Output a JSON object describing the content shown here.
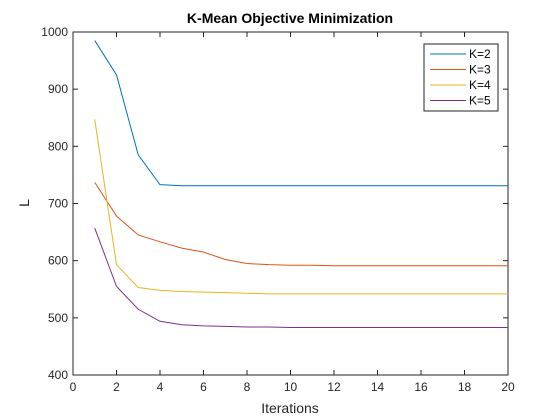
{
  "chart_data": {
    "type": "line",
    "title": "K-Mean Objective Minimization",
    "xlabel": "Iterations",
    "ylabel": "L",
    "xlim": [
      0,
      20
    ],
    "ylim": [
      400,
      1000
    ],
    "xticks": [
      0,
      2,
      4,
      6,
      8,
      10,
      12,
      14,
      16,
      18,
      20
    ],
    "yticks": [
      400,
      500,
      600,
      700,
      800,
      900,
      1000
    ],
    "grid": false,
    "legend_position": "top-right",
    "x": [
      1,
      2,
      3,
      4,
      5,
      6,
      7,
      8,
      9,
      10,
      11,
      12,
      13,
      14,
      15,
      16,
      17,
      18,
      19,
      20
    ],
    "series": [
      {
        "name": "K=2",
        "color": "#0072BD",
        "values": [
          985,
          925,
          785,
          733,
          731,
          731,
          731,
          731,
          731,
          731,
          731,
          731,
          731,
          731,
          731,
          731,
          731,
          731,
          731,
          731
        ]
      },
      {
        "name": "K=3",
        "color": "#D95319",
        "values": [
          737,
          678,
          645,
          633,
          622,
          615,
          602,
          595,
          593,
          592,
          592,
          591,
          591,
          591,
          591,
          591,
          591,
          591,
          591,
          591
        ]
      },
      {
        "name": "K=4",
        "color": "#EDB120",
        "values": [
          847,
          593,
          553,
          548,
          546,
          545,
          544,
          543,
          542,
          542,
          542,
          542,
          542,
          542,
          542,
          542,
          542,
          542,
          542,
          542
        ]
      },
      {
        "name": "K=5",
        "color": "#7E2F8E",
        "values": [
          657,
          555,
          515,
          494,
          488,
          486,
          485,
          484,
          484,
          483,
          483,
          483,
          483,
          483,
          483,
          483,
          483,
          483,
          483,
          483
        ]
      }
    ]
  }
}
